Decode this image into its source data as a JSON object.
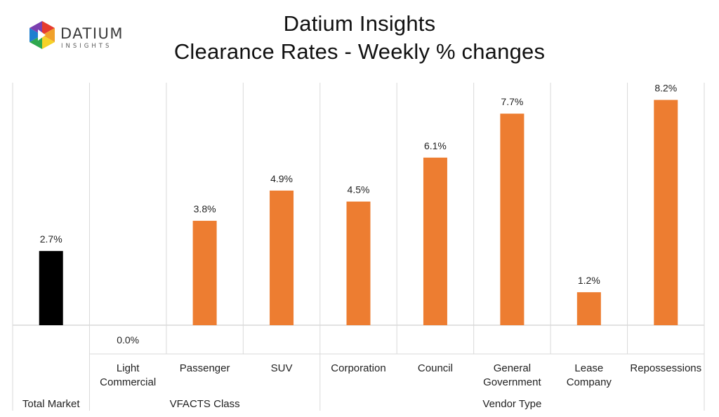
{
  "logo": {
    "word": "DATIUM",
    "subword": "INSIGHTS",
    "colors": [
      "#e63b2e",
      "#f0a12b",
      "#f6d228",
      "#2fa84f",
      "#1f7fd0",
      "#7b3fb0"
    ]
  },
  "title": {
    "line1": "Datium Insights",
    "line2": "Clearance Rates - Weekly % changes"
  },
  "chart_data": {
    "type": "bar",
    "title": "Datium Insights — Clearance Rates - Weekly % changes",
    "categories": [
      "Total Market",
      "Light Commercial",
      "Passenger",
      "SUV",
      "Corporation",
      "Council",
      "General Government",
      "Lease Company",
      "Repossessions"
    ],
    "category_label_lines": [
      [],
      [
        "Light",
        "Commercial"
      ],
      [
        "Passenger"
      ],
      [
        "SUV"
      ],
      [
        "Corporation"
      ],
      [
        "Council"
      ],
      [
        "General",
        "Government"
      ],
      [
        "Lease",
        "Company"
      ],
      [
        "Repossessions"
      ]
    ],
    "values": [
      2.7,
      0.0,
      3.8,
      4.9,
      4.5,
      6.1,
      7.7,
      1.2,
      8.2
    ],
    "data_labels": [
      "2.7%",
      "0.0%",
      "3.8%",
      "4.9%",
      "4.5%",
      "6.1%",
      "7.7%",
      "1.2%",
      "8.2%"
    ],
    "groups": [
      {
        "label": "Total Market",
        "start": 0,
        "end": 0
      },
      {
        "label": "VFACTS Class",
        "start": 1,
        "end": 3
      },
      {
        "label": "Vendor Type",
        "start": 4,
        "end": 8
      }
    ],
    "bar_colors": [
      "#000000",
      "#ed7d31",
      "#ed7d31",
      "#ed7d31",
      "#ed7d31",
      "#ed7d31",
      "#ed7d31",
      "#ed7d31",
      "#ed7d31"
    ],
    "grid_color": "#d9d9d9",
    "ylim": [
      0,
      9.0
    ],
    "xlabel": "",
    "ylabel": ""
  }
}
